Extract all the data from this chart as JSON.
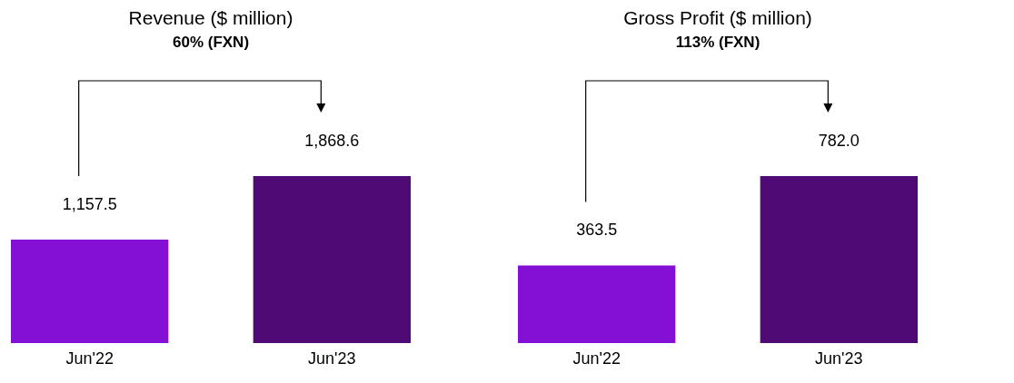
{
  "chart_data": [
    {
      "type": "bar",
      "title": "Revenue ($ million)",
      "annotations": [
        "60% (FXN)"
      ],
      "categories": [
        "Jun'22",
        "Jun'23"
      ],
      "values": [
        1157.5,
        1868.6
      ],
      "value_labels": [
        "1,157.5",
        "1,868.6"
      ],
      "colors": [
        "#8410d6",
        "#4f0a75"
      ]
    },
    {
      "type": "bar",
      "title": "Gross Profit ($ million)",
      "annotations": [
        "113% (FXN)"
      ],
      "categories": [
        "Jun'22",
        "Jun'23"
      ],
      "values": [
        363.5,
        782.0
      ],
      "value_labels": [
        "363.5",
        "782.0"
      ],
      "colors": [
        "#8410d6",
        "#4f0a75"
      ]
    }
  ]
}
